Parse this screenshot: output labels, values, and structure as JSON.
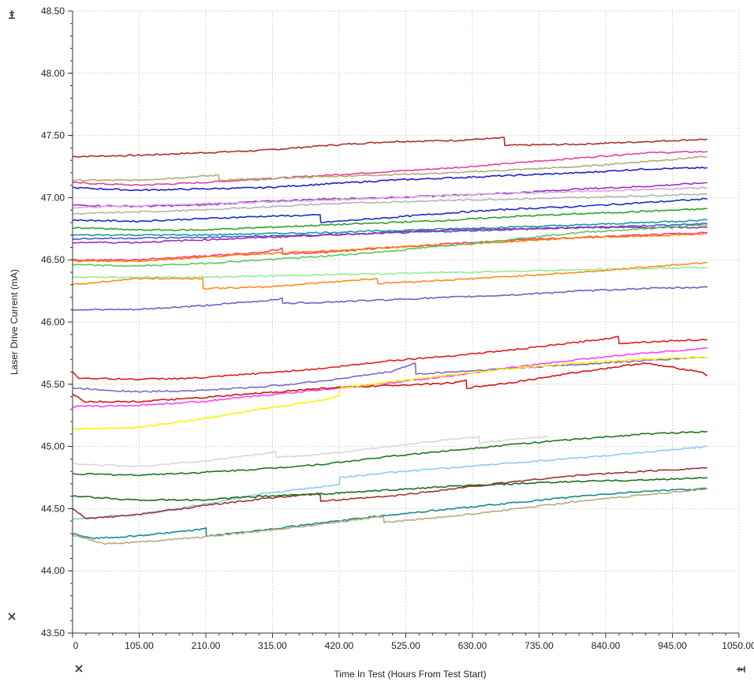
{
  "chart_data": {
    "type": "line",
    "xlabel": "Time In Test (Hours From Test Start)",
    "ylabel": "Laser Drive Current (mA)",
    "xlim": [
      0,
      1050
    ],
    "ylim": [
      43.5,
      48.5
    ],
    "x_ticks": [
      0,
      105,
      210,
      315,
      420,
      525,
      630,
      735,
      840,
      945,
      1050
    ],
    "x_tick_labels": [
      "0",
      "105.00",
      "210.00",
      "315.00",
      "420.00",
      "525.00",
      "630.00",
      "735.00",
      "840.00",
      "945.00",
      "1050.00"
    ],
    "y_ticks": [
      43.5,
      44.0,
      44.5,
      45.0,
      45.5,
      46.0,
      46.5,
      47.0,
      47.5,
      48.0,
      48.5
    ],
    "y_tick_labels": [
      "43.50",
      "44.00",
      "44.50",
      "45.00",
      "45.50",
      "46.00",
      "46.50",
      "47.00",
      "47.50",
      "48.00",
      "48.50"
    ],
    "grid": true,
    "legend": "none",
    "series": [
      {
        "color": "#a83232",
        "x": [
          0,
          100,
          200,
          300,
          400,
          500,
          600,
          680,
          681,
          800,
          900,
          1000
        ],
        "y": [
          47.33,
          47.34,
          47.36,
          47.38,
          47.42,
          47.45,
          47.46,
          47.48,
          47.42,
          47.43,
          47.45,
          47.47
        ]
      },
      {
        "color": "#e8409a",
        "x": [
          0,
          100,
          200,
          300,
          400,
          500,
          600,
          700,
          800,
          900,
          1000
        ],
        "y": [
          47.12,
          47.1,
          47.12,
          47.15,
          47.18,
          47.21,
          47.24,
          47.28,
          47.32,
          47.36,
          47.37
        ]
      },
      {
        "color": "#b0ac74",
        "x": [
          0,
          100,
          230,
          231,
          400,
          600,
          800,
          1000
        ],
        "y": [
          47.14,
          47.14,
          47.18,
          47.14,
          47.17,
          47.2,
          47.25,
          47.33
        ]
      },
      {
        "color": "#2020c8",
        "x": [
          0,
          100,
          200,
          300,
          400,
          500,
          600,
          700,
          800,
          900,
          1000
        ],
        "y": [
          47.08,
          47.06,
          47.07,
          47.08,
          47.11,
          47.14,
          47.16,
          47.18,
          47.2,
          47.23,
          47.24
        ]
      },
      {
        "color": "#9b30c8",
        "x": [
          0,
          100,
          200,
          300,
          400,
          500,
          600,
          700,
          800,
          900,
          1000
        ],
        "y": [
          46.94,
          46.93,
          46.94,
          46.97,
          46.99,
          47.0,
          47.02,
          47.04,
          47.07,
          47.09,
          47.12
        ]
      },
      {
        "color": "#d9a6dd",
        "x": [
          0,
          200,
          400,
          600,
          800,
          1000
        ],
        "y": [
          46.92,
          46.95,
          46.98,
          47.02,
          47.05,
          47.08
        ]
      },
      {
        "color": "#b4b4b4",
        "x": [
          0,
          200,
          400,
          600,
          800,
          1000
        ],
        "y": [
          46.87,
          46.9,
          46.95,
          46.98,
          47.0,
          47.03
        ]
      },
      {
        "color": "#1a2fc8",
        "x": [
          0,
          100,
          200,
          300,
          390,
          391,
          500,
          600,
          700,
          800,
          900,
          1000
        ],
        "y": [
          46.82,
          46.81,
          46.83,
          46.85,
          46.86,
          46.8,
          46.84,
          46.88,
          46.91,
          46.93,
          46.96,
          46.99
        ]
      },
      {
        "color": "#2ca32c",
        "x": [
          0,
          100,
          200,
          300,
          400,
          500,
          600,
          700,
          800,
          900,
          1000
        ],
        "y": [
          46.76,
          46.74,
          46.74,
          46.76,
          46.78,
          46.8,
          46.82,
          46.85,
          46.87,
          46.89,
          46.91
        ]
      },
      {
        "color": "#1a9a9a",
        "x": [
          0,
          200,
          400,
          600,
          800,
          1000
        ],
        "y": [
          46.7,
          46.7,
          46.72,
          46.75,
          46.78,
          46.82
        ]
      },
      {
        "color": "#4b5bd0",
        "x": [
          0,
          200,
          400,
          600,
          800,
          1000
        ],
        "y": [
          46.67,
          46.68,
          46.7,
          46.73,
          46.76,
          46.79
        ]
      },
      {
        "color": "#9a2fb5",
        "x": [
          0,
          100,
          200,
          300,
          400,
          500,
          600,
          700,
          800,
          900,
          1000
        ],
        "y": [
          46.64,
          46.64,
          46.66,
          46.68,
          46.7,
          46.72,
          46.74,
          46.75,
          46.76,
          46.76,
          46.76
        ]
      },
      {
        "color": "#ff3b6b",
        "x": [
          0,
          100,
          200,
          300,
          330,
          331,
          400,
          500,
          600,
          700,
          800,
          900,
          1000
        ],
        "y": [
          46.5,
          46.5,
          46.53,
          46.56,
          46.59,
          46.55,
          46.56,
          46.6,
          46.63,
          46.66,
          46.68,
          46.7,
          46.72
        ]
      },
      {
        "color": "#ff7f0e",
        "x": [
          0,
          100,
          200,
          300,
          400,
          500,
          600,
          700,
          800,
          900,
          1000
        ],
        "y": [
          46.49,
          46.49,
          46.52,
          46.55,
          46.57,
          46.6,
          46.62,
          46.65,
          46.68,
          46.69,
          46.71
        ]
      },
      {
        "color": "#5ac85a",
        "x": [
          0,
          100,
          200,
          300,
          400,
          500,
          600,
          700,
          800,
          900,
          1000
        ],
        "y": [
          46.46,
          46.45,
          46.47,
          46.5,
          46.53,
          46.57,
          46.62,
          46.67,
          46.72,
          46.75,
          46.78
        ]
      },
      {
        "color": "#90ee90",
        "x": [
          0,
          200,
          400,
          600,
          800,
          1000
        ],
        "y": [
          46.36,
          46.36,
          46.38,
          46.4,
          46.42,
          46.44
        ]
      },
      {
        "color": "#ff8c1a",
        "x": [
          0,
          100,
          205,
          206,
          300,
          400,
          480,
          481,
          600,
          700,
          800,
          900,
          1000
        ],
        "y": [
          46.3,
          46.35,
          46.35,
          46.27,
          46.28,
          46.32,
          46.35,
          46.31,
          46.34,
          46.37,
          46.4,
          46.44,
          46.48
        ]
      },
      {
        "color": "#7060c8",
        "x": [
          0,
          100,
          200,
          300,
          330,
          331,
          400,
          500,
          600,
          700,
          800,
          900,
          1000
        ],
        "y": [
          46.1,
          46.1,
          46.13,
          46.17,
          46.19,
          46.15,
          46.16,
          46.18,
          46.2,
          46.22,
          46.25,
          46.27,
          46.28
        ]
      },
      {
        "color": "#e01e1e",
        "x": [
          0,
          10,
          100,
          200,
          300,
          400,
          500,
          600,
          700,
          800,
          860,
          861,
          900,
          1000
        ],
        "y": [
          45.6,
          45.55,
          45.54,
          45.55,
          45.59,
          45.63,
          45.69,
          45.73,
          45.78,
          45.84,
          45.88,
          45.83,
          45.84,
          45.86
        ]
      },
      {
        "color": "#ff40ff",
        "x": [
          0,
          100,
          200,
          300,
          400,
          500,
          600,
          700,
          800,
          900,
          1000
        ],
        "y": [
          45.32,
          45.33,
          45.36,
          45.41,
          45.46,
          45.51,
          45.57,
          45.64,
          45.7,
          45.75,
          45.79
        ]
      },
      {
        "color": "#7a68d0",
        "x": [
          0,
          100,
          200,
          300,
          400,
          500,
          540,
          541,
          600,
          700,
          800,
          900,
          1000
        ],
        "y": [
          45.47,
          45.44,
          45.45,
          45.48,
          45.53,
          45.6,
          45.67,
          45.58,
          45.6,
          45.63,
          45.66,
          45.69,
          45.72
        ]
      },
      {
        "color": "#d01818",
        "x": [
          0,
          20,
          100,
          200,
          300,
          400,
          500,
          600,
          620,
          621,
          700,
          800,
          900,
          990,
          1000
        ],
        "y": [
          45.42,
          45.36,
          45.36,
          45.39,
          45.43,
          45.47,
          45.49,
          45.51,
          45.53,
          45.47,
          45.52,
          45.6,
          45.67,
          45.6,
          45.57
        ]
      },
      {
        "color": "#f5f500",
        "x": [
          0,
          100,
          200,
          300,
          400,
          420,
          421,
          500,
          600,
          700,
          800,
          900,
          1000
        ],
        "y": [
          45.14,
          45.15,
          45.22,
          45.3,
          45.38,
          45.41,
          45.47,
          45.52,
          45.58,
          45.63,
          45.67,
          45.7,
          45.72
        ]
      },
      {
        "color": "#d8d8d8",
        "x": [
          0,
          100,
          200,
          300,
          320,
          321,
          400,
          500,
          600,
          640,
          641,
          700,
          750
        ],
        "y": [
          44.86,
          44.84,
          44.88,
          44.94,
          44.96,
          44.91,
          44.94,
          45.0,
          45.06,
          45.08,
          45.03,
          45.06,
          45.08
        ]
      },
      {
        "color": "#1e7a1e",
        "x": [
          0,
          100,
          200,
          300,
          400,
          500,
          600,
          700,
          800,
          900,
          1000
        ],
        "y": [
          44.78,
          44.77,
          44.79,
          44.82,
          44.86,
          44.92,
          44.97,
          45.02,
          45.06,
          45.1,
          45.12
        ]
      },
      {
        "color": "#88ccf0",
        "x": [
          0,
          100,
          200,
          300,
          400,
          420,
          421,
          500,
          600,
          700,
          800,
          900,
          1000
        ],
        "y": [
          44.42,
          44.45,
          44.53,
          44.62,
          44.68,
          44.7,
          44.75,
          44.79,
          44.83,
          44.87,
          44.91,
          44.95,
          45.0
        ]
      },
      {
        "color": "#9b3535",
        "x": [
          0,
          20,
          100,
          200,
          300,
          390,
          391,
          500,
          600,
          700,
          800,
          900,
          1000
        ],
        "y": [
          44.5,
          44.42,
          44.45,
          44.52,
          44.58,
          44.62,
          44.56,
          44.6,
          44.66,
          44.72,
          44.77,
          44.8,
          44.83
        ]
      },
      {
        "color": "#1f6f1f",
        "x": [
          0,
          100,
          200,
          300,
          400,
          500,
          600,
          700,
          800,
          900,
          1000
        ],
        "y": [
          44.6,
          44.57,
          44.57,
          44.6,
          44.62,
          44.65,
          44.68,
          44.7,
          44.72,
          44.73,
          44.75
        ]
      },
      {
        "color": "#1a8a8a",
        "x": [
          0,
          30,
          100,
          200,
          210,
          211,
          300,
          400,
          500,
          600,
          700,
          800,
          900,
          1000
        ],
        "y": [
          44.3,
          44.26,
          44.28,
          44.33,
          44.34,
          44.28,
          44.33,
          44.39,
          44.45,
          44.5,
          44.55,
          44.6,
          44.64,
          44.66
        ]
      },
      {
        "color": "#b5ac78",
        "x": [
          0,
          50,
          100,
          200,
          300,
          400,
          490,
          491,
          600,
          700,
          800,
          900,
          1000
        ],
        "y": [
          44.29,
          44.22,
          44.23,
          44.27,
          44.32,
          44.38,
          44.44,
          44.39,
          44.44,
          44.5,
          44.56,
          44.61,
          44.66
        ]
      }
    ]
  },
  "icons": {
    "top_left": "anchor-icon",
    "bottom_left": "close-icon",
    "bottom_axis_left": "close-icon",
    "bottom_right": "anchor-icon"
  }
}
